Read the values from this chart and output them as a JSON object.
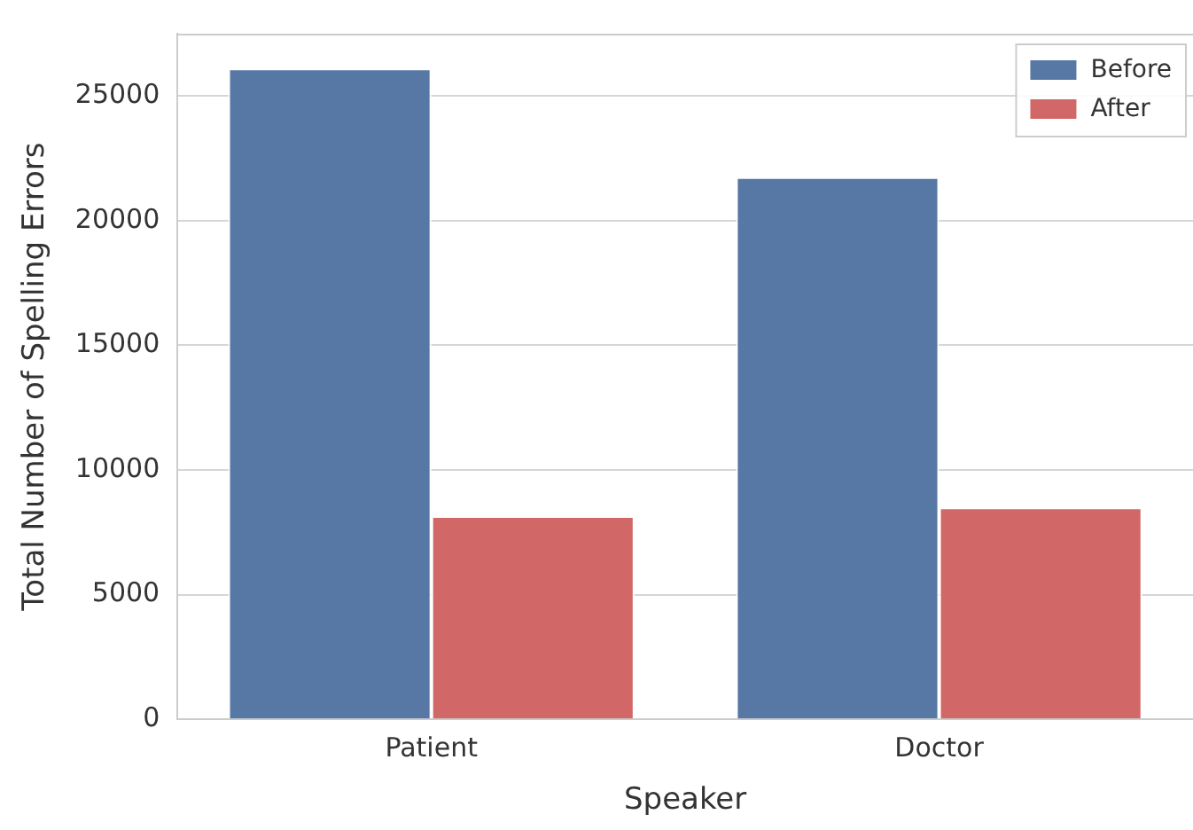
{
  "chart_data": {
    "type": "bar",
    "xlabel": "Speaker",
    "ylabel": "Total Number of Spelling Errors",
    "categories": [
      "Patient",
      "Doctor"
    ],
    "series": [
      {
        "name": "Before",
        "color": "#5778a4",
        "values": [
          26100,
          21750
        ]
      },
      {
        "name": "After",
        "color": "#d16867",
        "values": [
          8150,
          8500
        ]
      }
    ],
    "ylim": [
      0,
      27500
    ],
    "yticks": [
      0,
      5000,
      10000,
      15000,
      20000,
      25000
    ],
    "grid": "y",
    "legend": "top right"
  }
}
